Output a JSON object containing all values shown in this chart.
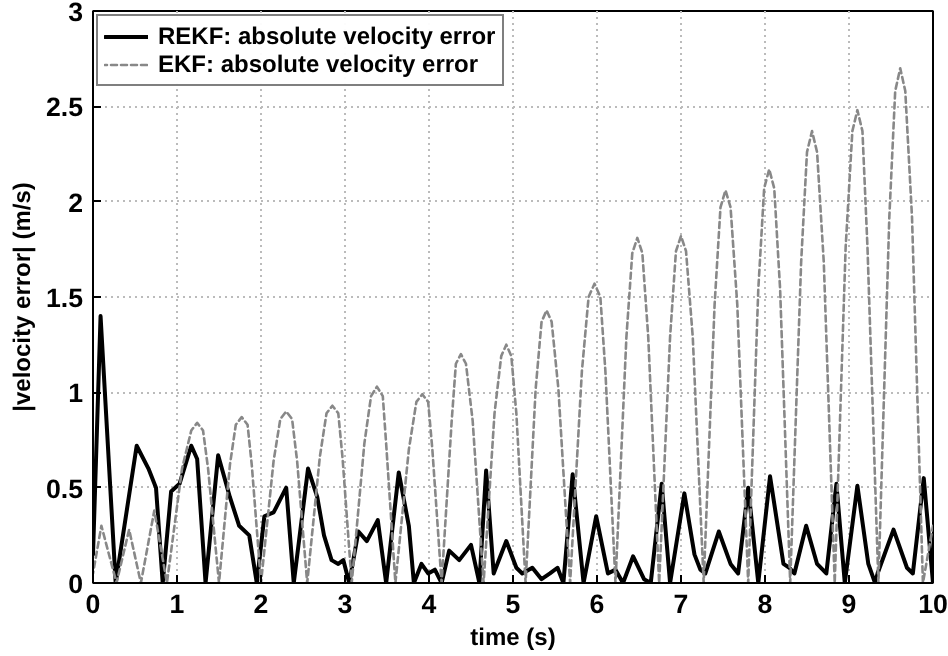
{
  "chart_data": {
    "type": "line",
    "xlabel": "time (s)",
    "ylabel": "|velocity error| (m/s)",
    "xlim": [
      0,
      10
    ],
    "ylim": [
      0,
      3
    ],
    "xticks": [
      0,
      1,
      2,
      3,
      4,
      5,
      6,
      7,
      8,
      9,
      10
    ],
    "yticks": [
      0,
      0.5,
      1,
      1.5,
      2,
      2.5,
      3
    ],
    "grid": true,
    "legend": "top left",
    "series": [
      {
        "name": "REKF: absolute velocity error",
        "color": "#000000",
        "line_style": "solid",
        "x": [
          0,
          0.09,
          0.27,
          0.52,
          0.66,
          0.75,
          0.83,
          0.93,
          1.03,
          1.17,
          1.24,
          1.34,
          1.49,
          1.63,
          1.74,
          1.86,
          1.95,
          2.04,
          2.15,
          2.3,
          2.39,
          2.56,
          2.67,
          2.75,
          2.84,
          2.92,
          2.98,
          3.05,
          3.16,
          3.26,
          3.39,
          3.49,
          3.64,
          3.76,
          3.82,
          3.91,
          3.99,
          4.07,
          4.15,
          4.24,
          4.36,
          4.5,
          4.6,
          4.68,
          4.77,
          4.92,
          5.04,
          5.11,
          5.23,
          5.34,
          5.44,
          5.53,
          5.6,
          5.71,
          5.84,
          5.99,
          6.13,
          6.22,
          6.31,
          6.43,
          6.56,
          6.64,
          6.77,
          6.87,
          7.04,
          7.16,
          7.23,
          7.29,
          7.45,
          7.59,
          7.68,
          7.8,
          7.92,
          8.06,
          8.22,
          8.29,
          8.35,
          8.49,
          8.62,
          8.73,
          8.85,
          8.95,
          9.1,
          9.23,
          9.31,
          9.34,
          9.53,
          9.69,
          9.76,
          9.89,
          10
        ],
        "values": [
          0.15,
          1.4,
          0,
          0.72,
          0.6,
          0.5,
          0,
          0.48,
          0.52,
          0.72,
          0.65,
          0,
          0.67,
          0.45,
          0.3,
          0.25,
          0,
          0.35,
          0.37,
          0.5,
          0,
          0.6,
          0.45,
          0.25,
          0.12,
          0.1,
          0.12,
          0,
          0.27,
          0.22,
          0.33,
          0,
          0.58,
          0.3,
          0,
          0.1,
          0.05,
          0.07,
          0,
          0.17,
          0.12,
          0.2,
          0,
          0.59,
          0.05,
          0.22,
          0.08,
          0.05,
          0.08,
          0.02,
          0.05,
          0.08,
          0,
          0.57,
          0,
          0.35,
          0.05,
          0.07,
          0,
          0.14,
          0.02,
          0,
          0.52,
          0,
          0.47,
          0.15,
          0.07,
          0.05,
          0.27,
          0.1,
          0.05,
          0.5,
          0,
          0.56,
          0.1,
          0.08,
          0.05,
          0.3,
          0.1,
          0.05,
          0.52,
          0,
          0.51,
          0.1,
          0,
          0.05,
          0.28,
          0.08,
          0.05,
          0.55,
          0
        ]
      },
      {
        "name": "EKF: absolute velocity error",
        "color": "#888888",
        "line_style": "dashed",
        "x": [
          0,
          0.1,
          0.28,
          0.43,
          0.57,
          0.73,
          0.88,
          1.06,
          1.17,
          1.24,
          1.31,
          1.37,
          1.5,
          1.63,
          1.7,
          1.77,
          1.84,
          1.89,
          2.0,
          2.15,
          2.23,
          2.3,
          2.37,
          2.43,
          2.55,
          2.7,
          2.78,
          2.85,
          2.92,
          2.97,
          3.08,
          3.23,
          3.31,
          3.38,
          3.45,
          3.49,
          3.6,
          3.76,
          3.85,
          3.92,
          3.99,
          4.04,
          4.15,
          4.27,
          4.32,
          4.38,
          4.44,
          4.52,
          4.65,
          4.78,
          4.86,
          4.92,
          4.98,
          5.04,
          5.15,
          5.27,
          5.34,
          5.4,
          5.46,
          5.54,
          5.68,
          5.82,
          5.9,
          5.97,
          6.04,
          6.1,
          6.22,
          6.35,
          6.42,
          6.48,
          6.54,
          6.61,
          6.74,
          6.87,
          6.94,
          7.0,
          7.06,
          7.14,
          7.27,
          7.4,
          7.47,
          7.53,
          7.59,
          7.67,
          7.8,
          7.92,
          7.99,
          8.05,
          8.11,
          8.18,
          8.3,
          8.43,
          8.5,
          8.56,
          8.62,
          8.7,
          8.83,
          8.96,
          9.04,
          9.1,
          9.16,
          9.22,
          9.35,
          9.48,
          9.55,
          9.61,
          9.67,
          9.75,
          9.88,
          10
        ],
        "values": [
          0.05,
          0.3,
          0,
          0.28,
          0,
          0.38,
          0,
          0.6,
          0.8,
          0.84,
          0.8,
          0.6,
          0,
          0.62,
          0.83,
          0.87,
          0.83,
          0.62,
          0,
          0.64,
          0.86,
          0.9,
          0.86,
          0.64,
          0,
          0.66,
          0.89,
          0.93,
          0.89,
          0.66,
          0,
          0.73,
          0.98,
          1.03,
          0.98,
          0.73,
          0,
          0.7,
          0.95,
          0.99,
          0.95,
          0.7,
          0,
          0.85,
          1.15,
          1.2,
          1.15,
          0.85,
          0,
          0.89,
          1.19,
          1.25,
          1.19,
          0.89,
          0,
          1.02,
          1.37,
          1.43,
          1.37,
          1.02,
          0,
          1.11,
          1.5,
          1.57,
          1.5,
          1.11,
          0,
          1.29,
          1.73,
          1.81,
          1.73,
          1.29,
          0,
          1.29,
          1.74,
          1.82,
          1.74,
          1.29,
          0,
          1.46,
          1.97,
          2.06,
          1.97,
          1.46,
          0,
          1.54,
          2.07,
          2.17,
          2.07,
          1.54,
          0,
          1.68,
          2.26,
          2.37,
          2.26,
          1.68,
          0,
          1.76,
          2.37,
          2.48,
          2.37,
          1.76,
          0,
          1.92,
          2.58,
          2.7,
          2.58,
          1.92,
          0,
          0.3
        ]
      }
    ]
  }
}
